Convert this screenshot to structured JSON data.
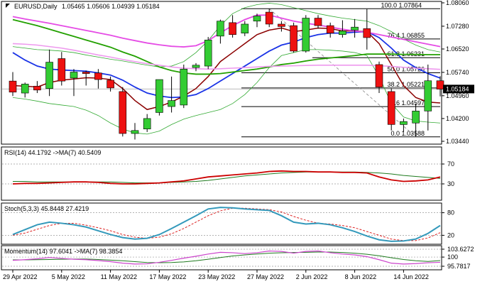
{
  "chart_data": {
    "type": "candlestick",
    "symbol": "EURUSD,Daily",
    "ohlc_text": "1.05465 1.05606 1.04939 1.05184",
    "price_axis": {
      "min": 1.0344,
      "max": 1.0806,
      "ticks": [
        "1.08060",
        "1.07280",
        "1.06520",
        "1.05740",
        "1.04960",
        "1.04200",
        "1.03440"
      ],
      "current_price_label": "1.05184",
      "current_price": 1.05184
    },
    "x_axis": {
      "labels": [
        {
          "text": "29 Apr 2022",
          "index": 0
        },
        {
          "text": "5 May 2022",
          "index": 4
        },
        {
          "text": "11 May 2022",
          "index": 8
        },
        {
          "text": "17 May 2022",
          "index": 12
        },
        {
          "text": "23 May 2022",
          "index": 16
        },
        {
          "text": "27 May 2022",
          "index": 20
        },
        {
          "text": "2 Jun 2022",
          "index": 24
        },
        {
          "text": "8 Jun 2022",
          "index": 28
        },
        {
          "text": "14 Jun 2022",
          "index": 32
        }
      ]
    },
    "candles": [
      {
        "o": 1.0545,
        "h": 1.0575,
        "l": 1.0495,
        "c": 1.0508
      },
      {
        "o": 1.0505,
        "h": 1.054,
        "l": 1.049,
        "c": 1.0535
      },
      {
        "o": 1.0528,
        "h": 1.0545,
        "l": 1.0505,
        "c": 1.0515
      },
      {
        "o": 1.052,
        "h": 1.065,
        "l": 1.0495,
        "c": 1.0608
      },
      {
        "o": 1.062,
        "h": 1.0642,
        "l": 1.053,
        "c": 1.0545
      },
      {
        "o": 1.0555,
        "h": 1.0585,
        "l": 1.0495,
        "c": 1.0575
      },
      {
        "o": 1.0575,
        "h": 1.058,
        "l": 1.053,
        "c": 1.057
      },
      {
        "o": 1.0572,
        "h": 1.0585,
        "l": 1.052,
        "c": 1.055
      },
      {
        "o": 1.0548,
        "h": 1.056,
        "l": 1.051,
        "c": 1.0522
      },
      {
        "o": 1.051,
        "h": 1.0525,
        "l": 1.036,
        "c": 1.037
      },
      {
        "o": 1.037,
        "h": 1.0405,
        "l": 1.035,
        "c": 1.038
      },
      {
        "o": 1.0385,
        "h": 1.0435,
        "l": 1.0375,
        "c": 1.042
      },
      {
        "o": 1.044,
        "h": 1.055,
        "l": 1.043,
        "c": 1.055
      },
      {
        "o": 1.046,
        "h": 1.056,
        "l": 1.044,
        "c": 1.048
      },
      {
        "o": 1.0465,
        "h": 1.06,
        "l": 1.0455,
        "c": 1.0585
      },
      {
        "o": 1.059,
        "h": 1.0605,
        "l": 1.0578,
        "c": 1.0598
      },
      {
        "o": 1.0595,
        "h": 1.0692,
        "l": 1.0585,
        "c": 1.0682
      },
      {
        "o": 1.0695,
        "h": 1.075,
        "l": 1.067,
        "c": 1.0745
      },
      {
        "o": 1.074,
        "h": 1.0765,
        "l": 1.069,
        "c": 1.07
      },
      {
        "o": 1.0705,
        "h": 1.0745,
        "l": 1.0695,
        "c": 1.0735
      },
      {
        "o": 1.0745,
        "h": 1.077,
        "l": 1.0725,
        "c": 1.0762
      },
      {
        "o": 1.0775,
        "h": 1.0787,
        "l": 1.0725,
        "c": 1.0735
      },
      {
        "o": 1.0735,
        "h": 1.0745,
        "l": 1.071,
        "c": 1.0727
      },
      {
        "o": 1.073,
        "h": 1.074,
        "l": 1.064,
        "c": 1.0645
      },
      {
        "o": 1.0645,
        "h": 1.0765,
        "l": 1.064,
        "c": 1.0755
      },
      {
        "o": 1.0755,
        "h": 1.0765,
        "l": 1.072,
        "c": 1.073
      },
      {
        "o": 1.073,
        "h": 1.074,
        "l": 1.069,
        "c": 1.0705
      },
      {
        "o": 1.07,
        "h": 1.0748,
        "l": 1.069,
        "c": 1.0712
      },
      {
        "o": 1.0715,
        "h": 1.0752,
        "l": 1.069,
        "c": 1.0725
      },
      {
        "o": 1.072,
        "h": 1.0785,
        "l": 1.065,
        "c": 1.069
      },
      {
        "o": 1.06,
        "h": 1.061,
        "l": 1.0505,
        "c": 1.0525
      },
      {
        "o": 1.051,
        "h": 1.052,
        "l": 1.038,
        "c": 1.04
      },
      {
        "o": 1.04,
        "h": 1.042,
        "l": 1.0375,
        "c": 1.041
      },
      {
        "o": 1.0405,
        "h": 1.047,
        "l": 1.0359,
        "c": 1.0445
      },
      {
        "o": 1.0445,
        "h": 1.06,
        "l": 1.038,
        "c": 1.0546
      },
      {
        "o": 1.0546,
        "h": 1.0561,
        "l": 1.0494,
        "c": 1.0518
      }
    ],
    "moving_averages": [
      {
        "color": "#8b0000",
        "values": [
          1.053,
          1.0528,
          1.0525,
          1.054,
          1.0548,
          1.0552,
          1.0556,
          1.0555,
          1.055,
          1.052,
          1.048,
          1.045,
          1.046,
          1.0475,
          1.0495,
          1.052,
          1.056,
          1.061,
          1.064,
          1.067,
          1.07,
          1.0715,
          1.0722,
          1.071,
          1.0715,
          1.0722,
          1.072,
          1.0712,
          1.0712,
          1.071,
          1.067,
          1.06,
          1.053,
          1.049,
          1.0475,
          1.0472
        ]
      },
      {
        "color": "#1a33e6",
        "values": [
          1.064,
          1.0615,
          1.0595,
          1.0585,
          1.0582,
          1.058,
          1.0578,
          1.0572,
          1.0565,
          1.0548,
          1.0525,
          1.0505,
          1.0495,
          1.049,
          1.0492,
          1.05,
          1.052,
          1.0545,
          1.057,
          1.0595,
          1.062,
          1.0645,
          1.0665,
          1.0675,
          1.069,
          1.07,
          1.0705,
          1.0705,
          1.0708,
          1.071,
          1.069,
          1.0655,
          1.0615,
          1.059,
          1.057,
          1.0555
        ]
      },
      {
        "color": "#22a000",
        "values": [
          1.075,
          1.074,
          1.073,
          1.0718,
          1.0706,
          1.0694,
          1.0682,
          1.067,
          1.0658,
          1.0642,
          1.0628,
          1.061,
          1.0592,
          1.058,
          1.0572,
          1.0568,
          1.0568,
          1.057,
          1.0575,
          1.058,
          1.0585,
          1.0592,
          1.06,
          1.0605,
          1.0612,
          1.0618,
          1.0622,
          1.0626,
          1.063,
          1.0635,
          1.0635,
          1.0635,
          1.0634,
          1.0634,
          1.0633,
          1.0633
        ]
      },
      {
        "color": "#e54ce5",
        "values": [
          1.076,
          1.0752,
          1.0745,
          1.0738,
          1.073,
          1.0722,
          1.0714,
          1.0706,
          1.0698,
          1.0688,
          1.068,
          1.0672,
          1.0666,
          1.0661,
          1.0659,
          1.0663,
          1.068,
          1.0706,
          1.073,
          1.075,
          1.0765,
          1.0765,
          1.0755,
          1.0745,
          1.0738,
          1.0732,
          1.0725,
          1.0718,
          1.0712,
          1.0708,
          1.07,
          1.0692,
          1.0684,
          1.0676,
          1.0668,
          1.066
        ]
      },
      {
        "color": "#ee99ee",
        "values": [
          1.067,
          1.0668,
          1.0665,
          1.066,
          1.0655,
          1.0648,
          1.064,
          1.0632,
          1.0625,
          1.0617,
          1.061,
          1.0603,
          1.0598,
          1.0592,
          1.0588,
          1.0586,
          1.0585,
          1.0586,
          1.0588,
          1.059,
          1.0592,
          1.0594,
          1.0595,
          1.0596,
          1.0597,
          1.0598,
          1.0598,
          1.0598,
          1.0598,
          1.0598,
          1.0596,
          1.0594,
          1.0591,
          1.0588,
          1.0586,
          1.0584
        ]
      }
    ],
    "bollinger": {
      "color": "#33aa33",
      "upper": [
        1.066,
        1.0655,
        1.065,
        1.0648,
        1.0645,
        1.064,
        1.0632,
        1.0625,
        1.0618,
        1.0612,
        1.0605,
        1.0598,
        1.0592,
        1.0595,
        1.061,
        1.064,
        1.068,
        1.073,
        1.077,
        1.079,
        1.08,
        1.0805,
        1.08,
        1.079,
        1.078,
        1.077,
        1.0762,
        1.0755,
        1.075,
        1.0745,
        1.073,
        1.071,
        1.0685,
        1.0665,
        1.065,
        1.0642
      ],
      "lower": [
        1.049,
        1.0485,
        1.0478,
        1.047,
        1.0465,
        1.046,
        1.0448,
        1.043,
        1.0405,
        1.0385,
        1.0372,
        1.0368,
        1.0378,
        1.04,
        1.0418,
        1.043,
        1.044,
        1.045,
        1.047,
        1.05,
        1.054,
        1.059,
        1.063,
        1.064,
        1.065,
        1.065,
        1.0648,
        1.0645,
        1.064,
        1.063,
        1.056,
        1.047,
        1.0425,
        1.0412,
        1.0408,
        1.0405
      ]
    },
    "fibonacci": [
      {
        "label": "100.0 1.07864",
        "price": 1.07864
      },
      {
        "label": "76.4 1.06855",
        "price": 1.06855
      },
      {
        "label": "61.8 1.06231",
        "price": 1.06231
      },
      {
        "label": "50.0 1.05726",
        "price": 1.05726
      },
      {
        "label": "38.2 1.05221",
        "price": 1.05221
      },
      {
        "label": "23.6 1.04597",
        "price": 1.04597
      },
      {
        "label": "0.0 1.03588",
        "price": 1.03588
      }
    ],
    "rsi": {
      "label": "RSI(14) 44.1792 ->MA(7) 40.5409",
      "levels": [
        "70",
        "30"
      ],
      "min": 0,
      "max": 100,
      "line": [
        30,
        31,
        31,
        32,
        33,
        34,
        34,
        33,
        31,
        30,
        30,
        31,
        32,
        34,
        36,
        40,
        44,
        46,
        48,
        50,
        52,
        55,
        56,
        55,
        55,
        54,
        54,
        53,
        53,
        52,
        44,
        38,
        35,
        36,
        38,
        44
      ],
      "ma": [
        35,
        35,
        34,
        34,
        34,
        34,
        34,
        34,
        34,
        33,
        32,
        32,
        32,
        33,
        34,
        35,
        37,
        40,
        43,
        46,
        48,
        50,
        52,
        53,
        54,
        54,
        54,
        54,
        54,
        53,
        52,
        50,
        47,
        45,
        43,
        41
      ]
    },
    "stoch": {
      "label": "Stoch(5,3,3) 45.8448 27.4219",
      "levels": [
        "80",
        "20"
      ],
      "min": 0,
      "max": 100,
      "k": [
        22,
        35,
        48,
        55,
        52,
        48,
        42,
        32,
        22,
        14,
        10,
        12,
        22,
        38,
        55,
        72,
        90,
        94,
        93,
        90,
        88,
        86,
        72,
        55,
        50,
        52,
        48,
        40,
        30,
        18,
        8,
        4,
        5,
        10,
        25,
        46
      ],
      "d": [
        20,
        26,
        36,
        46,
        52,
        52,
        47,
        40,
        32,
        22,
        15,
        12,
        15,
        24,
        38,
        55,
        72,
        85,
        92,
        92,
        90,
        88,
        82,
        70,
        60,
        52,
        50,
        46,
        40,
        30,
        20,
        10,
        6,
        6,
        13,
        27
      ]
    },
    "momentum": {
      "label": "Momentum(14) 97.6041 ->MA(7) 98.3854",
      "levels": [
        "103.6272",
        "100",
        "95.7817"
      ],
      "min": 94.8,
      "max": 104.6,
      "line": [
        98.5,
        98.8,
        99.2,
        99.8,
        99.4,
        99.0,
        98.8,
        98.4,
        97.9,
        97.2,
        96.8,
        96.9,
        97.6,
        98.5,
        99.5,
        100.4,
        101.4,
        102.2,
        102.0,
        101.6,
        102.0,
        102.8,
        102.6,
        101.8,
        102.6,
        102.8,
        102.0,
        101.4,
        101.0,
        100.2,
        98.8,
        97.2,
        96.8,
        97.0,
        97.4,
        97.6
      ],
      "ma": [
        98.7,
        98.7,
        98.8,
        98.9,
        99.0,
        99.1,
        99.1,
        98.9,
        98.6,
        98.3,
        97.9,
        97.5,
        97.4,
        97.5,
        97.8,
        98.3,
        99.0,
        99.8,
        100.5,
        101.0,
        101.4,
        101.8,
        102.0,
        102.1,
        102.2,
        102.3,
        102.3,
        102.1,
        101.8,
        101.3,
        100.6,
        99.7,
        98.9,
        98.3,
        98.0,
        98.4
      ]
    }
  }
}
